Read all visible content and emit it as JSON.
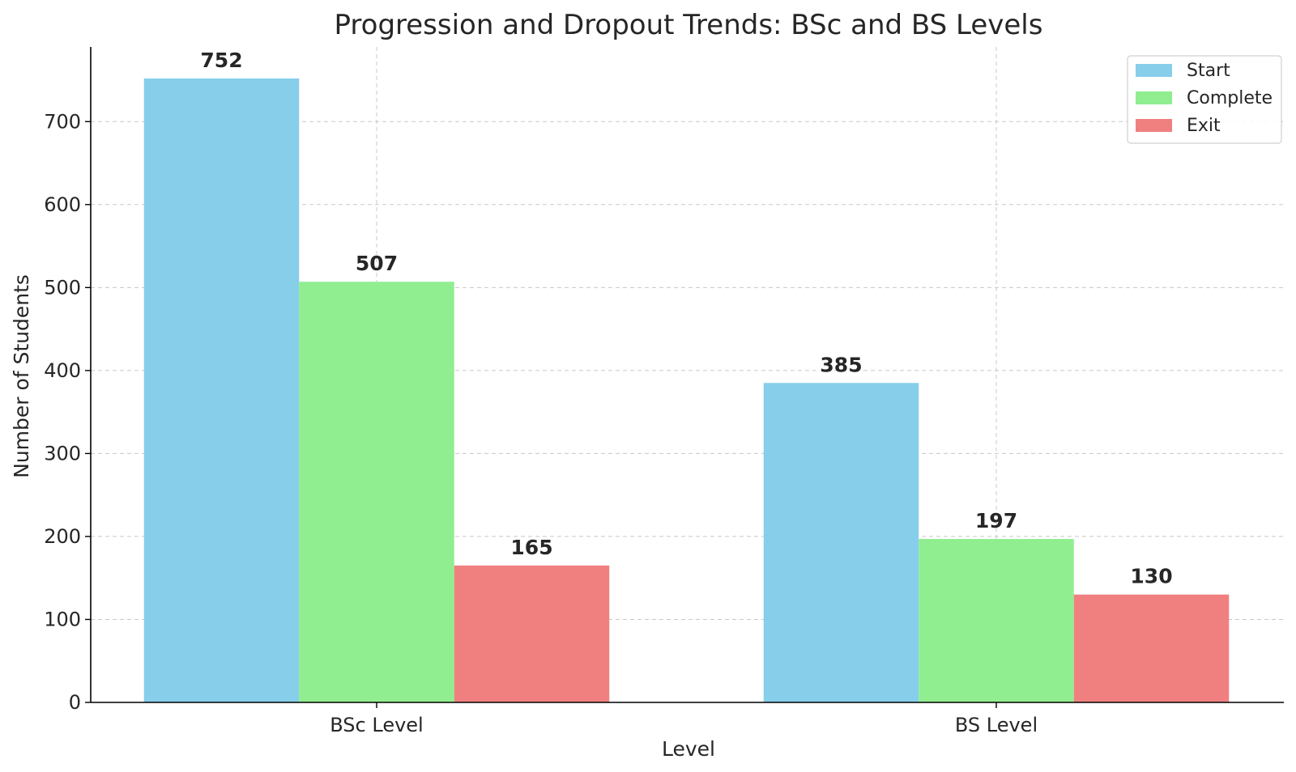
{
  "chart_data": {
    "type": "bar",
    "title": "Progression and Dropout Trends: BSc and BS Levels",
    "xlabel": "Level",
    "ylabel": "Number of Students",
    "categories": [
      "BSc Level",
      "BS Level"
    ],
    "series": [
      {
        "name": "Start",
        "values": [
          752,
          385
        ],
        "color": "#87CEEB"
      },
      {
        "name": "Complete",
        "values": [
          507,
          197
        ],
        "color": "#90EE90"
      },
      {
        "name": "Exit",
        "values": [
          165,
          130
        ],
        "color": "#F08080"
      }
    ],
    "ylim": [
      0,
      790
    ],
    "yticks": [
      0,
      100,
      200,
      300,
      400,
      500,
      600,
      700
    ],
    "grid": true,
    "legend_position": "top-right"
  }
}
